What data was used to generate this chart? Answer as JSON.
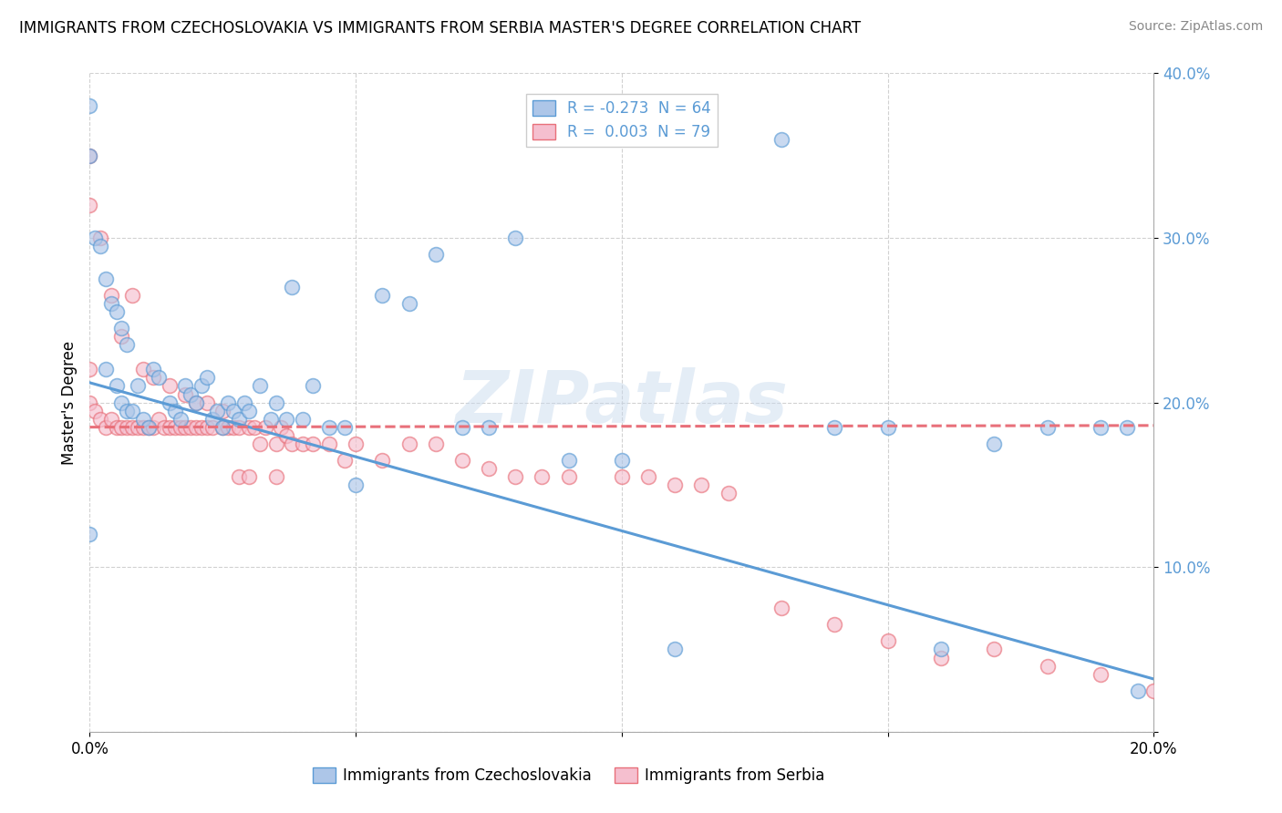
{
  "title": "IMMIGRANTS FROM CZECHOSLOVAKIA VS IMMIGRANTS FROM SERBIA MASTER'S DEGREE CORRELATION CHART",
  "source": "Source: ZipAtlas.com",
  "ylabel": "Master's Degree",
  "xlim": [
    0.0,
    0.2
  ],
  "ylim": [
    0.0,
    0.4
  ],
  "yticks": [
    0.0,
    0.1,
    0.2,
    0.3,
    0.4
  ],
  "xticks": [
    0.0,
    0.05,
    0.1,
    0.15,
    0.2
  ],
  "xtick_labels": [
    "0.0%",
    "",
    "",
    "",
    "20.0%"
  ],
  "ytick_labels": [
    "",
    "10.0%",
    "20.0%",
    "30.0%",
    "40.0%"
  ],
  "legend1_label": "R = -0.273  N = 64",
  "legend2_label": "R =  0.003  N = 79",
  "color_blue": "#adc6e8",
  "color_pink": "#f5bfcf",
  "line_blue": "#5b9bd5",
  "line_pink": "#e8707a",
  "watermark_text": "ZIPatlas",
  "blue_trend_x": [
    0.0,
    0.2
  ],
  "blue_trend_y": [
    0.212,
    0.032
  ],
  "pink_trend_x": [
    0.0,
    0.2
  ],
  "pink_trend_y": [
    0.185,
    0.186
  ],
  "blue_scatter_x": [
    0.003,
    0.005,
    0.006,
    0.007,
    0.008,
    0.009,
    0.01,
    0.011,
    0.012,
    0.013,
    0.015,
    0.016,
    0.017,
    0.018,
    0.019,
    0.02,
    0.021,
    0.022,
    0.023,
    0.024,
    0.025,
    0.026,
    0.027,
    0.028,
    0.029,
    0.03,
    0.032,
    0.034,
    0.035,
    0.037,
    0.038,
    0.04,
    0.042,
    0.045,
    0.048,
    0.05,
    0.055,
    0.06,
    0.065,
    0.07,
    0.075,
    0.08,
    0.09,
    0.1,
    0.11,
    0.13,
    0.14,
    0.15,
    0.16,
    0.17,
    0.18,
    0.19,
    0.195,
    0.197,
    0.0,
    0.0,
    0.0,
    0.001,
    0.002,
    0.003,
    0.004,
    0.005,
    0.006,
    0.007
  ],
  "blue_scatter_y": [
    0.22,
    0.21,
    0.2,
    0.195,
    0.195,
    0.21,
    0.19,
    0.185,
    0.22,
    0.215,
    0.2,
    0.195,
    0.19,
    0.21,
    0.205,
    0.2,
    0.21,
    0.215,
    0.19,
    0.195,
    0.185,
    0.2,
    0.195,
    0.19,
    0.2,
    0.195,
    0.21,
    0.19,
    0.2,
    0.19,
    0.27,
    0.19,
    0.21,
    0.185,
    0.185,
    0.15,
    0.265,
    0.26,
    0.29,
    0.185,
    0.185,
    0.3,
    0.165,
    0.165,
    0.05,
    0.36,
    0.185,
    0.185,
    0.05,
    0.175,
    0.185,
    0.185,
    0.185,
    0.025,
    0.38,
    0.35,
    0.12,
    0.3,
    0.295,
    0.275,
    0.26,
    0.255,
    0.245,
    0.235
  ],
  "pink_scatter_x": [
    0.0,
    0.0,
    0.0,
    0.001,
    0.002,
    0.003,
    0.004,
    0.005,
    0.006,
    0.007,
    0.008,
    0.009,
    0.01,
    0.011,
    0.012,
    0.013,
    0.014,
    0.015,
    0.016,
    0.017,
    0.018,
    0.019,
    0.02,
    0.021,
    0.022,
    0.023,
    0.025,
    0.026,
    0.027,
    0.028,
    0.03,
    0.031,
    0.032,
    0.033,
    0.035,
    0.036,
    0.037,
    0.038,
    0.04,
    0.042,
    0.045,
    0.048,
    0.05,
    0.055,
    0.06,
    0.065,
    0.07,
    0.075,
    0.08,
    0.085,
    0.09,
    0.1,
    0.105,
    0.11,
    0.115,
    0.12,
    0.13,
    0.14,
    0.15,
    0.16,
    0.17,
    0.18,
    0.19,
    0.2,
    0.0,
    0.002,
    0.004,
    0.006,
    0.008,
    0.01,
    0.012,
    0.015,
    0.018,
    0.02,
    0.022,
    0.025,
    0.028,
    0.03,
    0.035
  ],
  "pink_scatter_y": [
    0.32,
    0.22,
    0.2,
    0.195,
    0.19,
    0.185,
    0.19,
    0.185,
    0.185,
    0.185,
    0.185,
    0.185,
    0.185,
    0.185,
    0.185,
    0.19,
    0.185,
    0.185,
    0.185,
    0.185,
    0.185,
    0.185,
    0.185,
    0.185,
    0.185,
    0.185,
    0.185,
    0.185,
    0.185,
    0.185,
    0.185,
    0.185,
    0.175,
    0.185,
    0.175,
    0.185,
    0.18,
    0.175,
    0.175,
    0.175,
    0.175,
    0.165,
    0.175,
    0.165,
    0.175,
    0.175,
    0.165,
    0.16,
    0.155,
    0.155,
    0.155,
    0.155,
    0.155,
    0.15,
    0.15,
    0.145,
    0.075,
    0.065,
    0.055,
    0.045,
    0.05,
    0.04,
    0.035,
    0.025,
    0.35,
    0.3,
    0.265,
    0.24,
    0.265,
    0.22,
    0.215,
    0.21,
    0.205,
    0.2,
    0.2,
    0.195,
    0.155,
    0.155,
    0.155
  ]
}
